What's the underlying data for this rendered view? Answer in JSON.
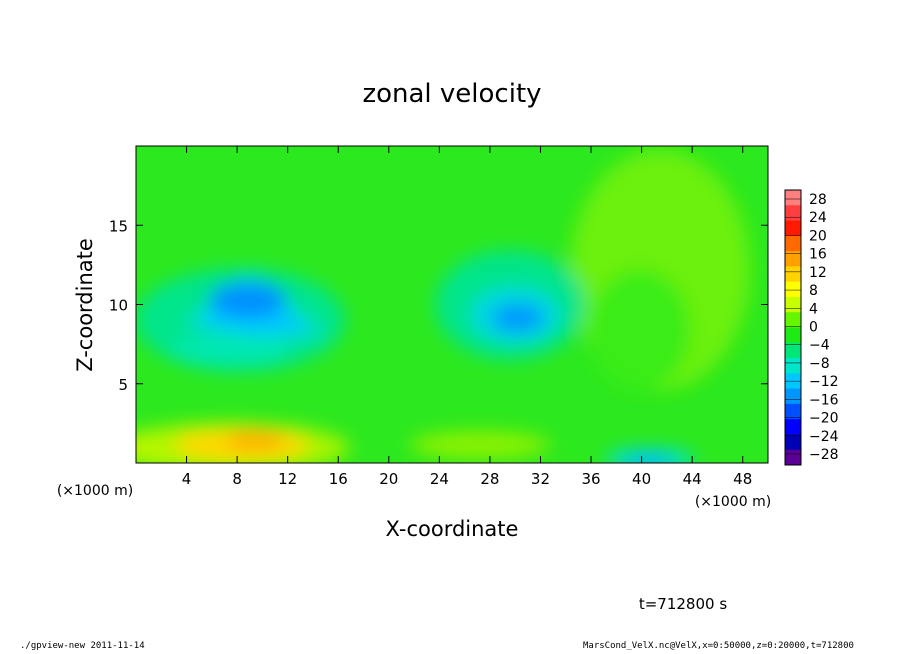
{
  "chart_data": {
    "type": "heatmap",
    "title": "zonal velocity",
    "xlabel": "X-coordinate",
    "ylabel": "Z-coordinate",
    "x_unit": "(×1000 m)",
    "y_unit": "(×1000 m)",
    "xlim": [
      0,
      50
    ],
    "ylim": [
      0,
      20
    ],
    "xticks": [
      4,
      8,
      12,
      16,
      20,
      24,
      28,
      32,
      36,
      40,
      44,
      48
    ],
    "yticks": [
      5,
      10,
      15
    ],
    "colorbar_levels": [
      28,
      24,
      20,
      16,
      12,
      8,
      4,
      0,
      -4,
      -8,
      -12,
      -16,
      -20,
      -24,
      -28
    ],
    "colorbar_colors": [
      "#ff7e7e",
      "#ff3f3f",
      "#ff1a00",
      "#ff6a00",
      "#ffa000",
      "#ffd200",
      "#ffff00",
      "#c8ff00",
      "#64f500",
      "#1eeb14",
      "#00e678",
      "#00e6c8",
      "#00c8ff",
      "#0096ff",
      "#0050ff",
      "#0000ff",
      "#0000b4",
      "#5a0096"
    ],
    "features": [
      {
        "x": 9,
        "z": 10.5,
        "value": -14,
        "note": "negative core"
      },
      {
        "x": 30,
        "z": 9.2,
        "value": -13,
        "note": "negative core"
      },
      {
        "x": 9,
        "z": 1.5,
        "value": 14,
        "note": "positive near surface"
      },
      {
        "x": 40,
        "z": 0.5,
        "value": -12,
        "note": "negative near surface"
      },
      {
        "x": 42,
        "z": 12,
        "value": 6,
        "note": "weak positive"
      }
    ]
  },
  "time_label": "t=712800 s",
  "footer_left": "./gpview-new  2011-11-14",
  "footer_right": "MarsCond_VelX.nc@VelX,x=0:50000,z=0:20000,t=712800"
}
